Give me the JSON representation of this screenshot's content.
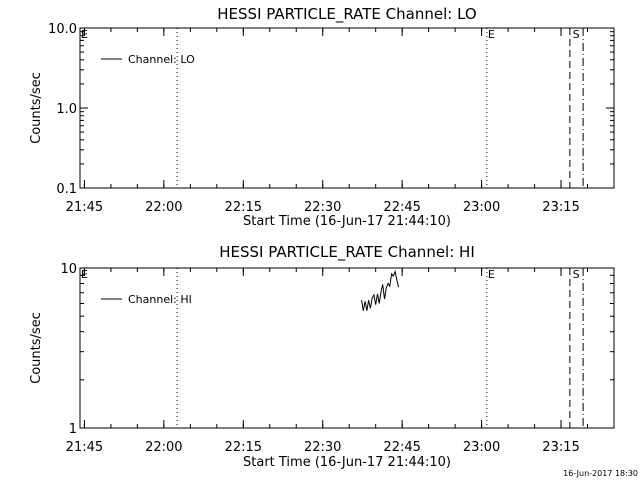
{
  "footer_timestamp": "16-Jun-2017 18:30",
  "chart_data": [
    {
      "type": "line",
      "title": "HESSI PARTICLE_RATE Channel: LO",
      "xlabel": "Start Time (16-Jun-17 21:44:10)",
      "ylabel": "Counts/sec",
      "y_scale": "log",
      "ylim": [
        0.1,
        10.0
      ],
      "y_ticks": [
        {
          "value": 0.1,
          "label": "0.1"
        },
        {
          "value": 1.0,
          "label": "1.0"
        },
        {
          "value": 10.0,
          "label": "10.0"
        }
      ],
      "xlim": [
        "21:44:10",
        "23:25:00"
      ],
      "x_ticks": [
        "21:45",
        "22:00",
        "22:15",
        "22:30",
        "22:45",
        "23:00",
        "23:15"
      ],
      "legend": {
        "position": "top-left",
        "entries": [
          "Channel: LO"
        ]
      },
      "series": [
        {
          "name": "Channel: LO",
          "points": []
        }
      ],
      "markers": [
        {
          "time": "21:44:10",
          "label": "E",
          "style": "none"
        },
        {
          "time": "22:02:30",
          "label": "",
          "style": "dotted"
        },
        {
          "time": "23:01:00",
          "label": "E",
          "style": "dotted"
        },
        {
          "time": "23:16:40",
          "label": "",
          "style": "dashed"
        },
        {
          "time": "23:17:00",
          "label": "S",
          "style": "none"
        },
        {
          "time": "23:19:10",
          "label": "",
          "style": "dash-dot"
        }
      ]
    },
    {
      "type": "line",
      "title": "HESSI PARTICLE_RATE Channel: HI",
      "xlabel": "Start Time (16-Jun-17 21:44:10)",
      "ylabel": "Counts/sec",
      "y_scale": "log",
      "ylim": [
        1,
        10
      ],
      "y_ticks": [
        {
          "value": 1,
          "label": "1"
        },
        {
          "value": 10,
          "label": "10"
        }
      ],
      "xlim": [
        "21:44:10",
        "23:25:00"
      ],
      "x_ticks": [
        "21:45",
        "22:00",
        "22:15",
        "22:30",
        "22:45",
        "23:00",
        "23:15"
      ],
      "legend": {
        "position": "top-left",
        "entries": [
          "Channel: HI"
        ]
      },
      "series": [
        {
          "name": "Channel: HI",
          "points": [
            [
              "22:37:20",
              6.3
            ],
            [
              "22:37:40",
              5.4
            ],
            [
              "22:38:00",
              6.2
            ],
            [
              "22:38:20",
              5.4
            ],
            [
              "22:38:40",
              6.3
            ],
            [
              "22:39:00",
              5.6
            ],
            [
              "22:39:20",
              6.5
            ],
            [
              "22:39:40",
              6.8
            ],
            [
              "22:40:00",
              5.9
            ],
            [
              "22:40:20",
              6.9
            ],
            [
              "22:40:40",
              6.0
            ],
            [
              "22:41:00",
              7.1
            ],
            [
              "22:41:20",
              7.9
            ],
            [
              "22:41:40",
              6.4
            ],
            [
              "22:42:00",
              7.5
            ],
            [
              "22:42:20",
              8.0
            ],
            [
              "22:42:40",
              7.7
            ],
            [
              "22:43:00",
              9.2
            ],
            [
              "22:43:20",
              8.9
            ],
            [
              "22:43:40",
              9.5
            ],
            [
              "22:44:00",
              8.4
            ],
            [
              "22:44:20",
              7.6
            ]
          ]
        }
      ],
      "markers": [
        {
          "time": "21:44:10",
          "label": "E",
          "style": "none"
        },
        {
          "time": "22:02:30",
          "label": "",
          "style": "dotted"
        },
        {
          "time": "23:01:00",
          "label": "E",
          "style": "dotted"
        },
        {
          "time": "23:16:40",
          "label": "",
          "style": "dashed"
        },
        {
          "time": "23:17:00",
          "label": "S",
          "style": "none"
        },
        {
          "time": "23:19:10",
          "label": "",
          "style": "dash-dot"
        }
      ]
    }
  ]
}
